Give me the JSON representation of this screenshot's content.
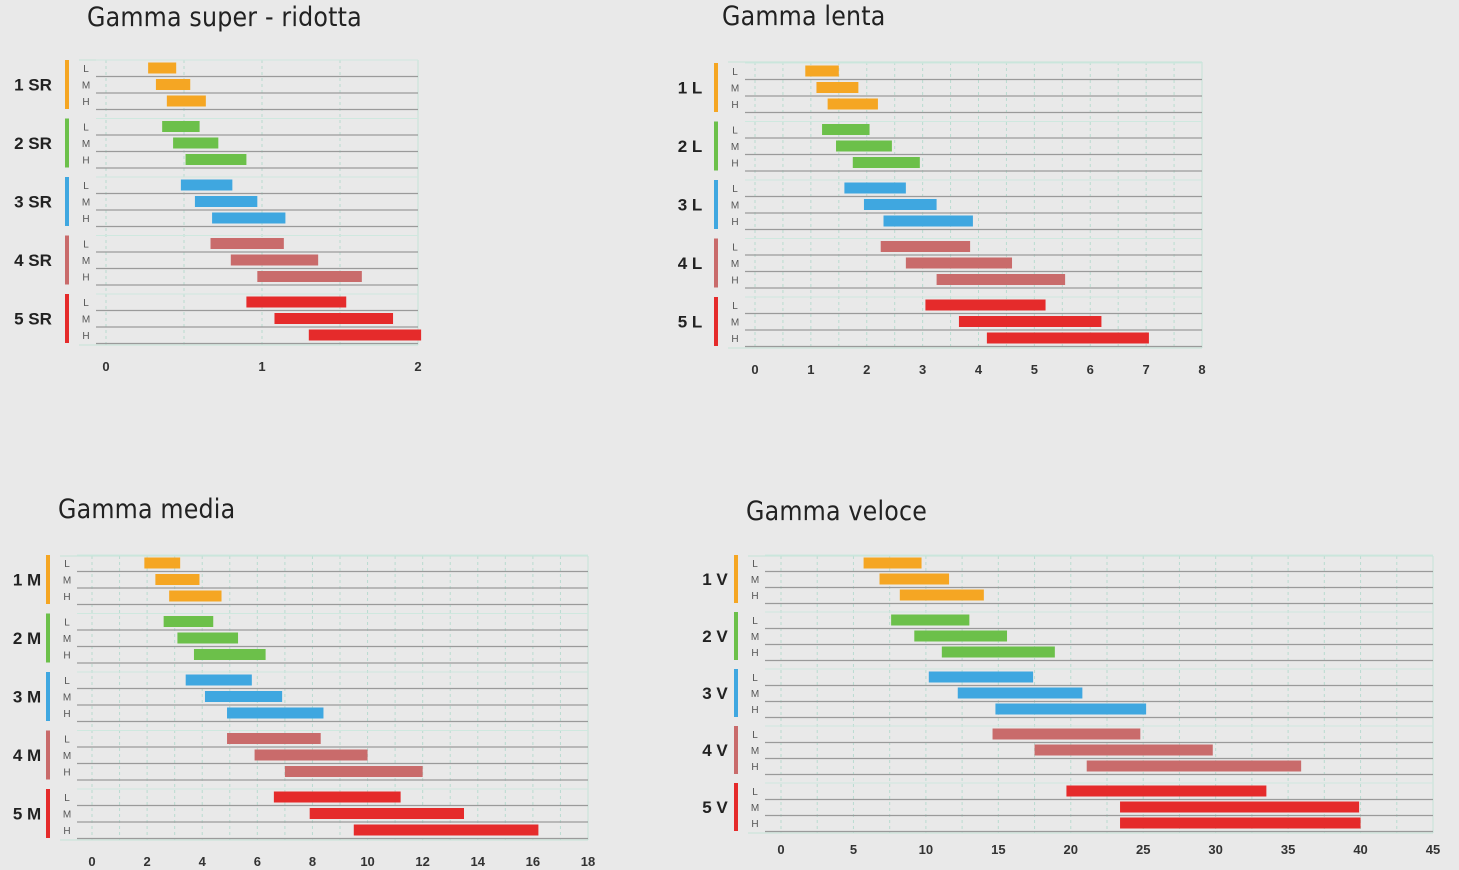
{
  "chart_data": [
    {
      "type": "bar",
      "title": "Gamma super - ridotta",
      "xticks": [
        0,
        1,
        2
      ],
      "xlim": [
        0,
        2
      ],
      "gears": [
        {
          "label": "1 SR",
          "color": "#f5a623",
          "rows": [
            {
              "load": "L",
              "start": 0.27,
              "end": 0.45
            },
            {
              "load": "M",
              "start": 0.32,
              "end": 0.54
            },
            {
              "load": "H",
              "start": 0.39,
              "end": 0.64
            }
          ]
        },
        {
          "label": "2 SR",
          "color": "#6cc04a",
          "rows": [
            {
              "load": "L",
              "start": 0.36,
              "end": 0.6
            },
            {
              "load": "M",
              "start": 0.43,
              "end": 0.72
            },
            {
              "load": "H",
              "start": 0.51,
              "end": 0.9
            }
          ]
        },
        {
          "label": "3 SR",
          "color": "#3fa7e0",
          "rows": [
            {
              "load": "L",
              "start": 0.48,
              "end": 0.81
            },
            {
              "load": "M",
              "start": 0.57,
              "end": 0.97
            },
            {
              "load": "H",
              "start": 0.68,
              "end": 1.15
            }
          ]
        },
        {
          "label": "4 SR",
          "color": "#c96b6b",
          "rows": [
            {
              "load": "L",
              "start": 0.67,
              "end": 1.14
            },
            {
              "load": "M",
              "start": 0.8,
              "end": 1.36
            },
            {
              "load": "H",
              "start": 0.97,
              "end": 1.64
            }
          ]
        },
        {
          "label": "5 SR",
          "color": "#e52b2b",
          "rows": [
            {
              "load": "L",
              "start": 0.9,
              "end": 1.54
            },
            {
              "load": "M",
              "start": 1.08,
              "end": 1.84
            },
            {
              "load": "H",
              "start": 1.3,
              "end": 2.02
            }
          ]
        }
      ]
    },
    {
      "type": "bar",
      "title": "Gamma lenta",
      "xticks": [
        0,
        1,
        2,
        3,
        4,
        5,
        6,
        7,
        8
      ],
      "xlim": [
        0,
        8
      ],
      "gears": [
        {
          "label": "1 L",
          "color": "#f5a623",
          "rows": [
            {
              "load": "L",
              "start": 0.9,
              "end": 1.5
            },
            {
              "load": "M",
              "start": 1.1,
              "end": 1.85
            },
            {
              "load": "H",
              "start": 1.3,
              "end": 2.2
            }
          ]
        },
        {
          "label": "2 L",
          "color": "#6cc04a",
          "rows": [
            {
              "load": "L",
              "start": 1.2,
              "end": 2.05
            },
            {
              "load": "M",
              "start": 1.45,
              "end": 2.45
            },
            {
              "load": "H",
              "start": 1.75,
              "end": 2.95
            }
          ]
        },
        {
          "label": "3 L",
          "color": "#3fa7e0",
          "rows": [
            {
              "load": "L",
              "start": 1.6,
              "end": 2.7
            },
            {
              "load": "M",
              "start": 1.95,
              "end": 3.25
            },
            {
              "load": "H",
              "start": 2.3,
              "end": 3.9
            }
          ]
        },
        {
          "label": "4 L",
          "color": "#c96b6b",
          "rows": [
            {
              "load": "L",
              "start": 2.25,
              "end": 3.85
            },
            {
              "load": "M",
              "start": 2.7,
              "end": 4.6
            },
            {
              "load": "H",
              "start": 3.25,
              "end": 5.55
            }
          ]
        },
        {
          "label": "5 L",
          "color": "#e52b2b",
          "rows": [
            {
              "load": "L",
              "start": 3.05,
              "end": 5.2
            },
            {
              "load": "M",
              "start": 3.65,
              "end": 6.2
            },
            {
              "load": "H",
              "start": 4.15,
              "end": 7.05
            }
          ]
        }
      ]
    },
    {
      "type": "bar",
      "title": "Gamma media",
      "xticks": [
        0,
        2,
        4,
        6,
        8,
        10,
        12,
        14,
        16,
        18
      ],
      "xlim": [
        0,
        18
      ],
      "gears": [
        {
          "label": "1 M",
          "color": "#f5a623",
          "rows": [
            {
              "load": "L",
              "start": 1.9,
              "end": 3.2
            },
            {
              "load": "M",
              "start": 2.3,
              "end": 3.9
            },
            {
              "load": "H",
              "start": 2.8,
              "end": 4.7
            }
          ]
        },
        {
          "label": "2 M",
          "color": "#6cc04a",
          "rows": [
            {
              "load": "L",
              "start": 2.6,
              "end": 4.4
            },
            {
              "load": "M",
              "start": 3.1,
              "end": 5.3
            },
            {
              "load": "H",
              "start": 3.7,
              "end": 6.3
            }
          ]
        },
        {
          "label": "3 M",
          "color": "#3fa7e0",
          "rows": [
            {
              "load": "L",
              "start": 3.4,
              "end": 5.8
            },
            {
              "load": "M",
              "start": 4.1,
              "end": 6.9
            },
            {
              "load": "H",
              "start": 4.9,
              "end": 8.4
            }
          ]
        },
        {
          "label": "4 M",
          "color": "#c96b6b",
          "rows": [
            {
              "load": "L",
              "start": 4.9,
              "end": 8.3
            },
            {
              "load": "M",
              "start": 5.9,
              "end": 10.0
            },
            {
              "load": "H",
              "start": 7.0,
              "end": 12.0
            }
          ]
        },
        {
          "label": "5 M",
          "color": "#e52b2b",
          "rows": [
            {
              "load": "L",
              "start": 6.6,
              "end": 11.2
            },
            {
              "load": "M",
              "start": 7.9,
              "end": 13.5
            },
            {
              "load": "H",
              "start": 9.5,
              "end": 16.2
            }
          ]
        }
      ]
    },
    {
      "type": "bar",
      "title": "Gamma veloce",
      "xticks": [
        0,
        5,
        10,
        15,
        20,
        25,
        30,
        35,
        40,
        45
      ],
      "xlim": [
        0,
        45
      ],
      "gears": [
        {
          "label": "1 V",
          "color": "#f5a623",
          "rows": [
            {
              "load": "L",
              "start": 5.7,
              "end": 9.7
            },
            {
              "load": "M",
              "start": 6.8,
              "end": 11.6
            },
            {
              "load": "H",
              "start": 8.2,
              "end": 14.0
            }
          ]
        },
        {
          "label": "2 V",
          "color": "#6cc04a",
          "rows": [
            {
              "load": "L",
              "start": 7.6,
              "end": 13.0
            },
            {
              "load": "M",
              "start": 9.2,
              "end": 15.6
            },
            {
              "load": "H",
              "start": 11.1,
              "end": 18.9
            }
          ]
        },
        {
          "label": "3 V",
          "color": "#3fa7e0",
          "rows": [
            {
              "load": "L",
              "start": 10.2,
              "end": 17.4
            },
            {
              "load": "M",
              "start": 12.2,
              "end": 20.8
            },
            {
              "load": "H",
              "start": 14.8,
              "end": 25.2
            }
          ]
        },
        {
          "label": "4 V",
          "color": "#c96b6b",
          "rows": [
            {
              "load": "L",
              "start": 14.6,
              "end": 24.8
            },
            {
              "load": "M",
              "start": 17.5,
              "end": 29.8
            },
            {
              "load": "H",
              "start": 21.1,
              "end": 35.9
            }
          ]
        },
        {
          "label": "5 V",
          "color": "#e52b2b",
          "rows": [
            {
              "load": "L",
              "start": 19.7,
              "end": 33.5
            },
            {
              "load": "M",
              "start": 23.4,
              "end": 39.9
            },
            {
              "load": "H",
              "start": 23.4,
              "end": 40.0
            }
          ]
        }
      ]
    }
  ]
}
